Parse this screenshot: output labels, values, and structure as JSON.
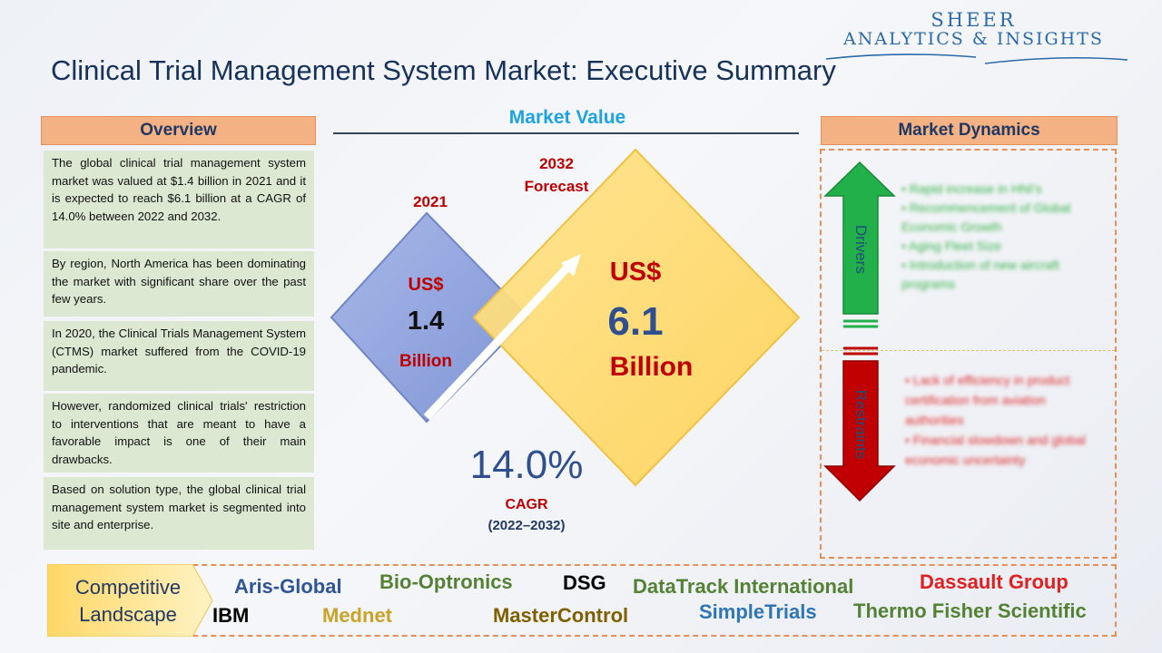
{
  "logo": {
    "line1": "SHEER",
    "line2": "ANALYTICS & INSIGHTS"
  },
  "title": "Clinical Trial Management System Market: Executive Summary",
  "overview": {
    "header": "Overview",
    "paragraphs": [
      "The global clinical trial management system market was valued at $1.4 billion in 2021 and it is expected to reach $6.1 billion at a CAGR of 14.0% between 2022 and 2032.",
      "By region, North America has been dominating the market with significant share over the past few years.",
      "In 2020, the Clinical Trials Management System (CTMS) market suffered from the COVID-19 pandemic.",
      "However, randomized clinical trials' restriction to interventions that are meant to have a favorable impact is one of their main drawbacks.",
      "Based on solution type, the global clinical trial management system market is segmented into site and enterprise."
    ]
  },
  "market_value": {
    "title": "Market Value",
    "year_2021": "2021",
    "value_2021": {
      "currency": "US$",
      "amount": "1.4",
      "unit": "Billion"
    },
    "year_2032": "2032",
    "forecast_label": "Forecast",
    "value_2032": {
      "currency": "US$",
      "amount": "6.1",
      "unit": "Billion"
    },
    "cagr_value": "14.0%",
    "cagr_label": "CAGR",
    "cagr_period": "(2022–2032)",
    "colors": {
      "small_diamond": "#8fa3dc",
      "large_diamond": "#ffd96b",
      "label_red": "#c00000",
      "value_blue": "#2f4f8f"
    }
  },
  "market_dynamics": {
    "header": "Market Dynamics",
    "drivers_label": "Drivers",
    "restraints_label": "Restraints",
    "drivers": [
      "Rapid increase in HNI's",
      "Recommencement of Global Economic Growth",
      "Aging Fleet Size",
      "Introduction of new aircraft programs"
    ],
    "restraints": [
      "Lack of efficiency in product certification from aviation authorities",
      "Financial slowdown and global economic uncertainty"
    ]
  },
  "competitive": {
    "label_line1": "Competitive",
    "label_line2": "Landscape",
    "companies": [
      {
        "name": "Aris-Global",
        "color": "#2f5597"
      },
      {
        "name": "Bio-Optronics",
        "color": "#548235"
      },
      {
        "name": "DSG",
        "color": "#000000"
      },
      {
        "name": "DataTrack International",
        "color": "#548235"
      },
      {
        "name": "Dassault Group",
        "color": "#e02020"
      },
      {
        "name": "IBM",
        "color": "#000000"
      },
      {
        "name": "Mednet",
        "color": "#c9a227"
      },
      {
        "name": "MasterControl",
        "color": "#7f6000"
      },
      {
        "name": "SimpleTrials",
        "color": "#2e75b6"
      },
      {
        "name": "Thermo Fisher Scientific",
        "color": "#548235"
      }
    ]
  }
}
